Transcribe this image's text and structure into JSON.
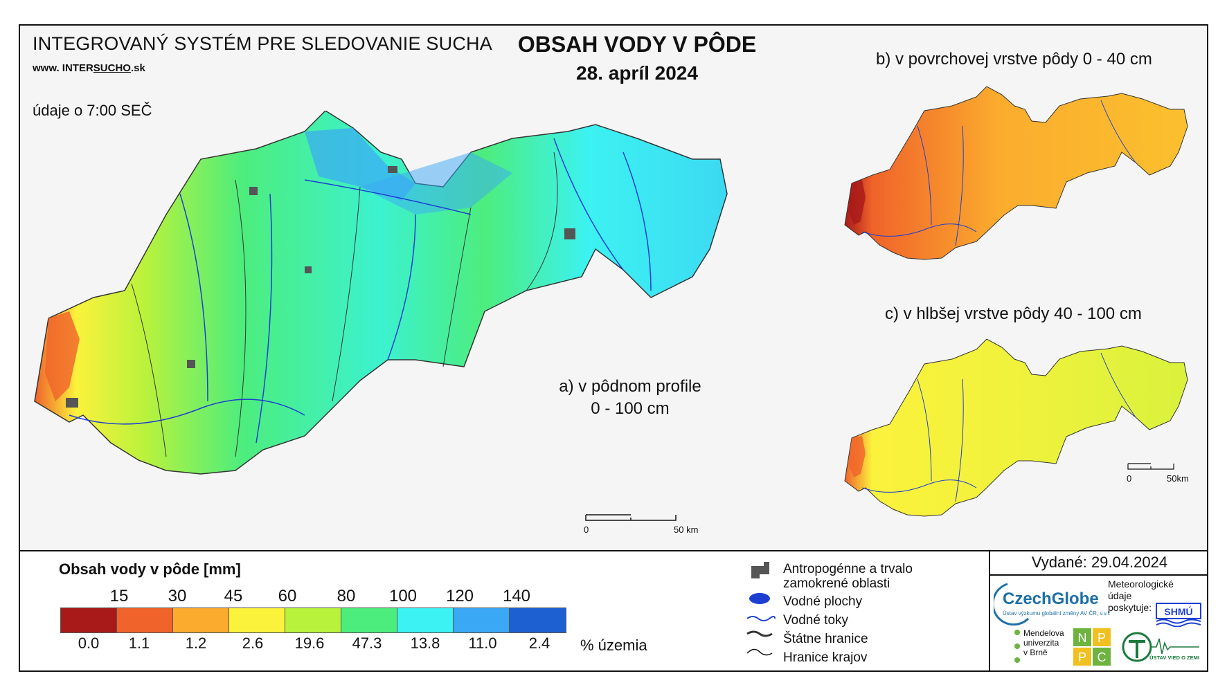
{
  "header": {
    "system_title": "INTEGROVANÝ SYSTÉM PRE SLEDOVANIE SUCHA",
    "website_prefix": "www. ",
    "website_brand_a": "INTER",
    "website_brand_b": "SUCHO",
    "website_suffix": ".sk",
    "time_note": "údaje o 7:00 SEČ",
    "main_title": "OBSAH VODY V PÔDE",
    "main_date": "28. apríl 2024"
  },
  "maps": {
    "a_label_line1": "a) v pôdnom profile",
    "a_label_line2": "0 - 100 cm",
    "b_label": "b) v povrchovej vrstve pôdy 0 - 40 cm",
    "c_label": "c) v hlbšej vrstve pôdy 40 - 100 cm",
    "scale_main_zero": "0",
    "scale_main_end": "50 km",
    "scale_small_zero": "0",
    "scale_small_end": "50km"
  },
  "legend": {
    "title": "Obsah vody v pôde  [mm]",
    "thresholds": [
      "15",
      "30",
      "45",
      "60",
      "80",
      "100",
      "120",
      "140"
    ],
    "class_colors": [
      "#a81919",
      "#f0632a",
      "#fbac2e",
      "#fbf23c",
      "#b9f23c",
      "#4ded7d",
      "#3cf2f2",
      "#3ba8f5",
      "#1c60d2"
    ],
    "percentages": [
      "0.0",
      "1.1",
      "1.2",
      "2.6",
      "19.6",
      "47.3",
      "13.8",
      "11.0",
      "2.4"
    ],
    "percent_unit": "% územia",
    "symbols": [
      {
        "icon": "urban-area-icon",
        "label_line1": "Antropogénne a trvalo",
        "label_line2": "zamokrené oblasti"
      },
      {
        "icon": "water-body-icon",
        "label_line1": "Vodné plochy",
        "label_line2": ""
      },
      {
        "icon": "river-icon",
        "label_line1": "Vodné toky",
        "label_line2": ""
      },
      {
        "icon": "state-border-icon",
        "label_line1": "Štátne hranice",
        "label_line2": ""
      },
      {
        "icon": "region-border-icon",
        "label_line1": "Hranice krajov",
        "label_line2": ""
      }
    ]
  },
  "footer": {
    "issued": "Vydané: 29.04.2024",
    "czechglobe": "CzechGlobe",
    "czechglobe_sub": "Ústav výzkumu globální změny AV ČR, v.v.i.",
    "meteo_line1": "Meteorologické",
    "meteo_line2": "údaje",
    "meteo_line3": "poskytuje:",
    "shmu": "SHMÚ",
    "mendel_line1": "Mendelova",
    "mendel_line2": "univerzita",
    "mendel_line3": "v Brně",
    "nppc": [
      "N",
      "P",
      "P",
      "C"
    ],
    "uvz": "ÚSTAV VIED O ZEMI"
  }
}
